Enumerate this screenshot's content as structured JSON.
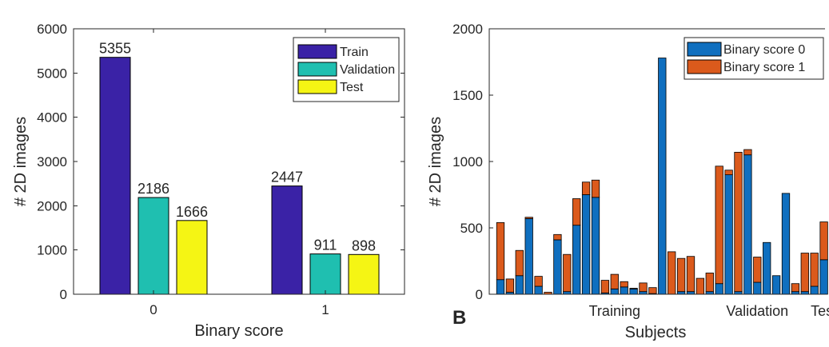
{
  "panel_label": "B",
  "chart_data": [
    {
      "type": "bar",
      "xlabel": "Binary score",
      "ylabel": "# 2D images",
      "ylim": [
        0,
        6000
      ],
      "yticks": [
        0,
        1000,
        2000,
        3000,
        4000,
        5000,
        6000
      ],
      "categories": [
        "0",
        "1"
      ],
      "series": [
        {
          "name": "Train",
          "color": "#3a22a6",
          "values": [
            5355,
            2447
          ]
        },
        {
          "name": "Validation",
          "color": "#1fbfb0",
          "values": [
            2186,
            911
          ]
        },
        {
          "name": "Test",
          "color": "#f5f514",
          "values": [
            1666,
            898
          ]
        }
      ],
      "data_labels": [
        [
          "5355",
          "2447"
        ],
        [
          "2186",
          "911"
        ],
        [
          "1666",
          "898"
        ]
      ],
      "legend_position": "top-right",
      "grid": false
    },
    {
      "type": "bar",
      "stacked": true,
      "xlabel": "Subjects",
      "ylabel": "# 2D images",
      "ylim": [
        0,
        2000
      ],
      "yticks": [
        0,
        500,
        1000,
        1500,
        2000
      ],
      "group_labels": [
        {
          "label": "Training",
          "at_subject": 13
        },
        {
          "label": "Validation",
          "at_subject": 28
        },
        {
          "label": "Test",
          "at_subject": 35
        }
      ],
      "series": [
        {
          "name": "Binary score 0",
          "color": "#0f6fbf",
          "values": [
            110,
            15,
            140,
            570,
            60,
            0,
            410,
            20,
            520,
            750,
            730,
            10,
            40,
            55,
            40,
            20,
            5,
            1780,
            0,
            20,
            20,
            0,
            20,
            80,
            900,
            20,
            1050,
            90,
            390,
            140,
            760,
            20,
            20,
            60,
            260
          ]
        },
        {
          "name": "Binary score 1",
          "color": "#db5a1c",
          "values": [
            430,
            100,
            190,
            10,
            75,
            15,
            40,
            280,
            200,
            95,
            130,
            95,
            110,
            40,
            5,
            65,
            45,
            0,
            320,
            250,
            265,
            120,
            140,
            885,
            35,
            1050,
            40,
            190,
            0,
            0,
            0,
            60,
            290,
            250,
            285
          ]
        }
      ],
      "legend_position": "top-right",
      "grid": false
    }
  ]
}
